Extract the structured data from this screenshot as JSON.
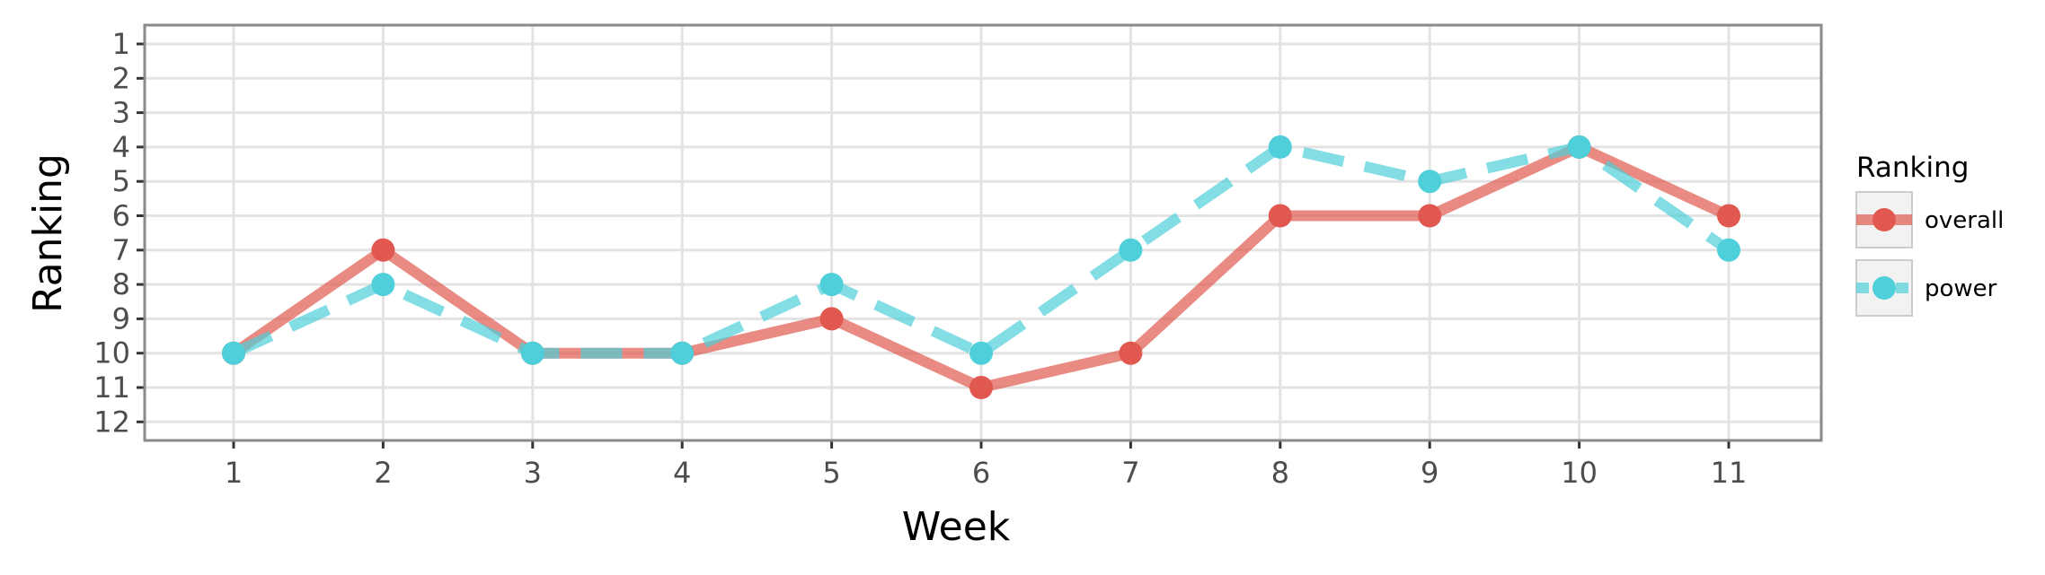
{
  "chart_data": {
    "type": "line",
    "xlabel": "Week",
    "ylabel": "Ranking",
    "x": [
      1,
      2,
      3,
      4,
      5,
      6,
      7,
      8,
      9,
      10,
      11
    ],
    "x_ticks": [
      "1",
      "2",
      "3",
      "4",
      "5",
      "6",
      "7",
      "8",
      "9",
      "10",
      "11"
    ],
    "y_ticks": [
      "1",
      "2",
      "3",
      "4",
      "5",
      "6",
      "7",
      "8",
      "9",
      "10",
      "11",
      "12"
    ],
    "ylim": [
      1,
      12
    ],
    "y_reversed": true,
    "grid": true,
    "legend": {
      "title": "Ranking",
      "placement": "right"
    },
    "series": [
      {
        "name": "overall",
        "values": [
          10,
          7,
          10,
          10,
          9,
          11,
          10,
          6,
          6,
          4,
          6
        ],
        "color": "#E0584F",
        "line_style": "solid"
      },
      {
        "name": "power",
        "values": [
          10,
          8,
          10,
          10,
          8,
          10,
          7,
          4,
          5,
          4,
          7
        ],
        "color": "#4ECFD9",
        "line_style": "dashed"
      }
    ]
  }
}
